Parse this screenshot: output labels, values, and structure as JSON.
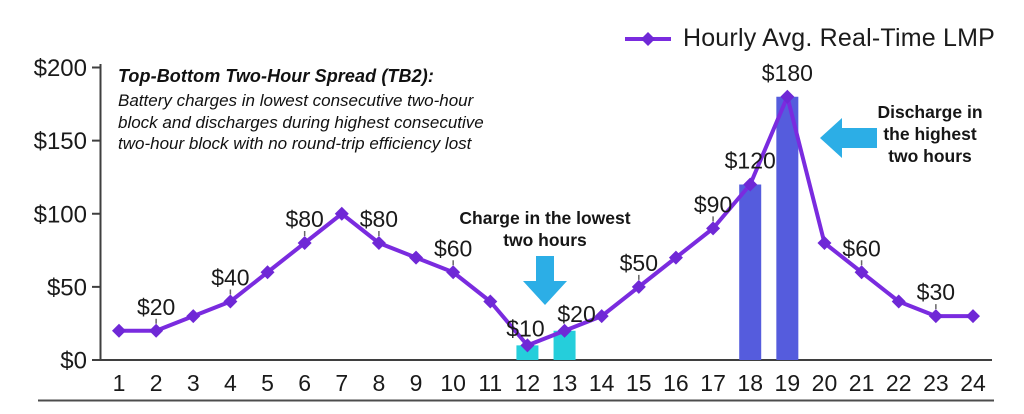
{
  "legend": {
    "label": "Hourly Avg. Real-Time LMP"
  },
  "annotation": {
    "title": "Top-Bottom Two-Hour Spread (TB2):",
    "lines": [
      "Battery charges in lowest consecutive two-hour",
      "block and discharges during highest consecutive",
      "two-hour block with no round-trip efficiency lost"
    ]
  },
  "callouts": {
    "charge": {
      "lines": [
        "Charge in the lowest",
        "two hours"
      ]
    },
    "discharge": {
      "lines": [
        "Discharge in",
        "the highest",
        "two hours"
      ]
    }
  },
  "chart_data": {
    "type": "line",
    "title": "",
    "xlabel": "",
    "ylabel": "",
    "x": [
      1,
      2,
      3,
      4,
      5,
      6,
      7,
      8,
      9,
      10,
      11,
      12,
      13,
      14,
      15,
      16,
      17,
      18,
      19,
      20,
      21,
      22,
      23,
      24
    ],
    "series": [
      {
        "name": "Hourly Avg. Real-Time LMP",
        "values": [
          20,
          20,
          30,
          40,
          60,
          80,
          100,
          80,
          70,
          60,
          40,
          10,
          20,
          30,
          50,
          70,
          90,
          120,
          180,
          80,
          60,
          40,
          30,
          30
        ]
      }
    ],
    "point_labels": [
      {
        "hour": 2,
        "text": "$20"
      },
      {
        "hour": 4,
        "text": "$40"
      },
      {
        "hour": 6,
        "text": "$80"
      },
      {
        "hour": 8,
        "text": "$80"
      },
      {
        "hour": 10,
        "text": "$60"
      },
      {
        "hour": 12,
        "text": "$10"
      },
      {
        "hour": 13,
        "text": "$20"
      },
      {
        "hour": 15,
        "text": "$50"
      },
      {
        "hour": 17,
        "text": "$90"
      },
      {
        "hour": 18,
        "text": "$120"
      },
      {
        "hour": 19,
        "text": "$180"
      },
      {
        "hour": 21,
        "text": "$60"
      },
      {
        "hour": 23,
        "text": "$30"
      }
    ],
    "bars": [
      {
        "hour": 12,
        "value": 10,
        "type": "charge"
      },
      {
        "hour": 13,
        "value": 20,
        "type": "charge"
      },
      {
        "hour": 18,
        "value": 120,
        "type": "discharge"
      },
      {
        "hour": 19,
        "value": 180,
        "type": "discharge"
      }
    ],
    "y_ticks": [
      "$0",
      "$50",
      "$100",
      "$150",
      "$200"
    ],
    "y_tick_values": [
      0,
      50,
      100,
      150,
      200
    ],
    "ylim": [
      0,
      200
    ],
    "grid": false,
    "legend_position": "top-right",
    "colors": {
      "line": "#7a2bdf",
      "marker": "#6f28d6",
      "charge_bar": "#25cedb",
      "discharge_bar": "#555cdd",
      "arrow": "#2caee6",
      "axis": "#3f3f3f",
      "divider": "#4d4d4d",
      "text": "#1a1a1a"
    }
  }
}
